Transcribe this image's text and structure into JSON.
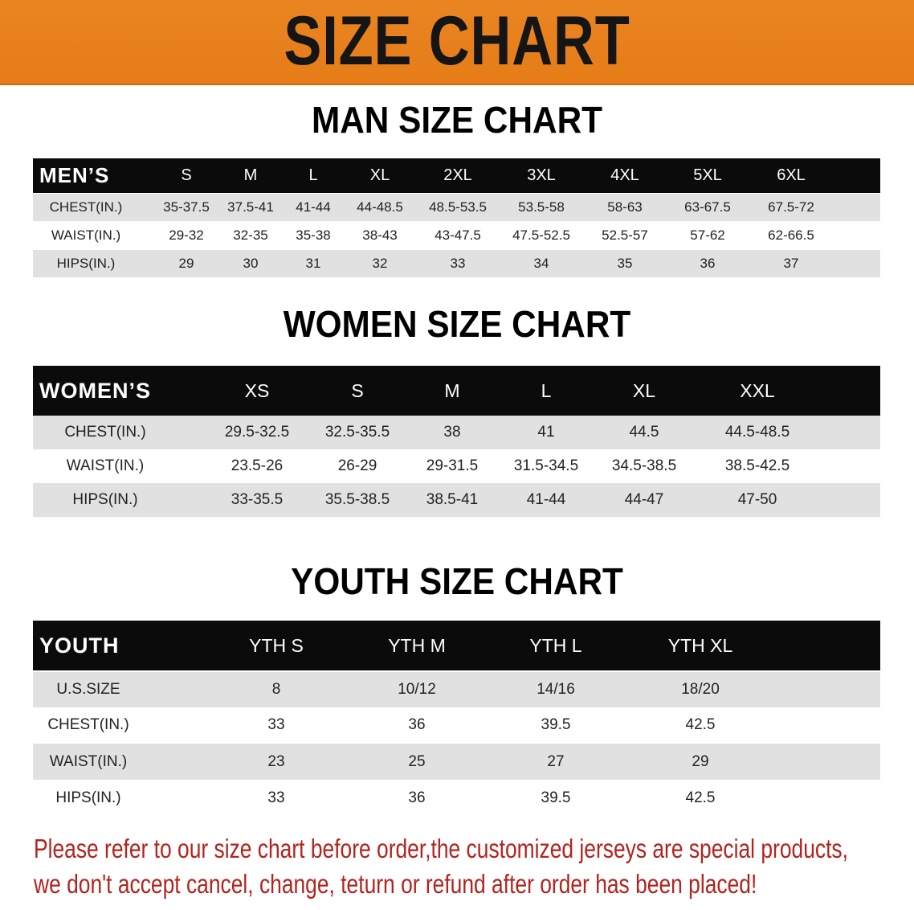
{
  "title": "SIZE CHART",
  "colors": {
    "banner": "#e8821e",
    "header_row": "#0b0b0b",
    "stripe": "#e1e1e1",
    "notice": "#b3231f"
  },
  "men": {
    "section_title": "MAN SIZE CHART",
    "headers": [
      "MEN’S",
      "S",
      "M",
      "L",
      "XL",
      "2XL",
      "3XL",
      "4XL",
      "5XL",
      "6XL"
    ],
    "rows": [
      [
        "CHEST(IN.)",
        "35-37.5",
        "37.5-41",
        "41-44",
        "44-48.5",
        "48.5-53.5",
        "53.5-58",
        "58-63",
        "63-67.5",
        "67.5-72"
      ],
      [
        "WAIST(IN.)",
        "29-32",
        "32-35",
        "35-38",
        "38-43",
        "43-47.5",
        "47.5-52.5",
        "52.5-57",
        "57-62",
        "62-66.5"
      ],
      [
        "HIPS(IN.)",
        "29",
        "30",
        "31",
        "32",
        "33",
        "34",
        "35",
        "36",
        "37"
      ]
    ]
  },
  "women": {
    "section_title": "WOMEN SIZE CHART",
    "headers": [
      "WOMEN’S",
      "XS",
      "S",
      "M",
      "L",
      "XL",
      "XXL"
    ],
    "rows": [
      [
        "CHEST(IN.)",
        "29.5-32.5",
        "32.5-35.5",
        "38",
        "41",
        "44.5",
        "44.5-48.5"
      ],
      [
        "WAIST(IN.)",
        "23.5-26",
        "26-29",
        "29-31.5",
        "31.5-34.5",
        "34.5-38.5",
        "38.5-42.5"
      ],
      [
        "HIPS(IN.)",
        "33-35.5",
        "35.5-38.5",
        "38.5-41",
        "41-44",
        "44-47",
        "47-50"
      ]
    ]
  },
  "youth": {
    "section_title": "YOUTH SIZE CHART",
    "headers": [
      "YOUTH",
      "YTH S",
      "YTH M",
      "YTH L",
      "YTH XL"
    ],
    "rows": [
      [
        "U.S.SIZE",
        "8",
        "10/12",
        "14/16",
        "18/20"
      ],
      [
        "CHEST(IN.)",
        "33",
        "36",
        "39.5",
        "42.5"
      ],
      [
        "WAIST(IN.)",
        "23",
        "25",
        "27",
        "29"
      ],
      [
        "HIPS(IN.)",
        "33",
        "36",
        "39.5",
        "42.5"
      ]
    ]
  },
  "notice": {
    "line1": "Please refer to our size chart before order,the customized jerseys are special products,",
    "line2": "we don't accept cancel, change, teturn or refund after order has been placed!"
  }
}
